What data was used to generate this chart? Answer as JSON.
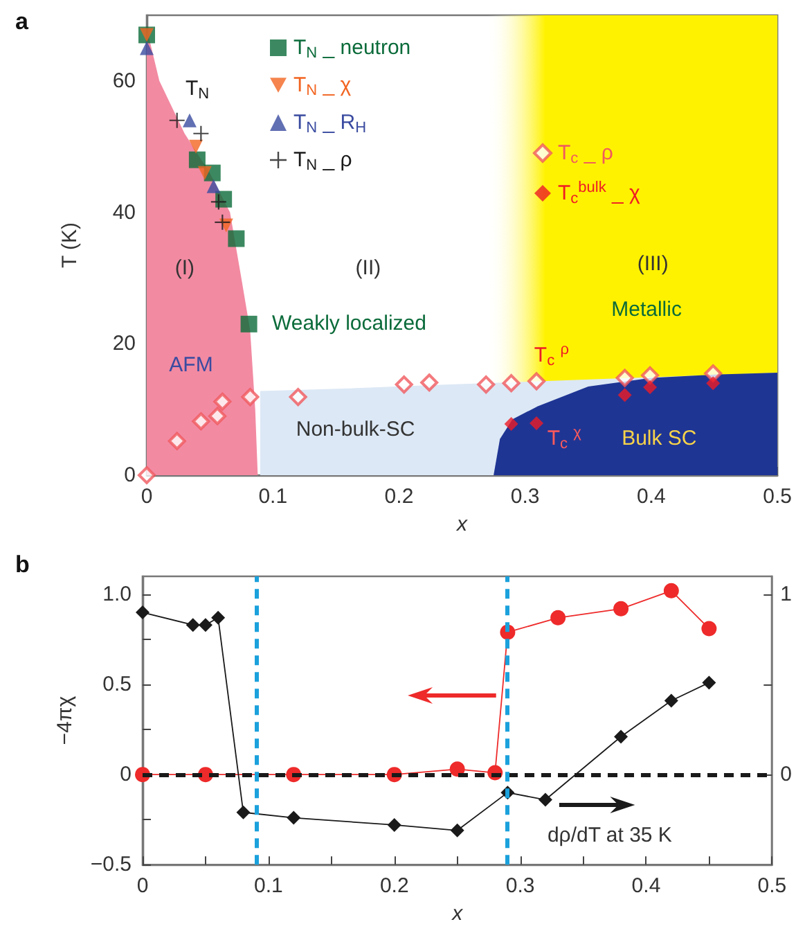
{
  "chart_data": [
    {
      "type": "scatter",
      "title": "a",
      "xlabel": "x",
      "ylabel": "T (K)",
      "xlim": [
        0,
        0.5
      ],
      "xticks": [
        0,
        {
          "value": 0.05,
          "label": null
        },
        0.1,
        {
          "value": 0.15,
          "label": null
        },
        0.2,
        {
          "value": 0.25,
          "label": null
        },
        0.3,
        {
          "value": 0.35,
          "label": null
        },
        0.4,
        {
          "value": 0.45,
          "label": null
        },
        0.5
      ],
      "ylim": [
        0,
        70
      ],
      "yticks": [
        0,
        {
          "value": 10,
          "label": null
        },
        20,
        {
          "value": 30,
          "label": null
        },
        40,
        {
          "value": 50,
          "label": null
        },
        60
      ],
      "grid": false,
      "legend": "top",
      "bands": [
        {
          "axis": "x",
          "from": 0.27,
          "to": 0.5,
          "color": "#fff200"
        }
      ],
      "series": [
        {
          "type": "area",
          "color": "#dce8f5",
          "x": [
            0.09,
            0.16,
            0.24,
            0.5
          ],
          "values": [
            12.8,
            13.2,
            13.8,
            15.6
          ]
        },
        {
          "type": "area",
          "color": "#1f3594",
          "x": [
            0.275,
            0.28,
            0.29,
            0.31,
            0.35,
            0.4,
            0.45,
            0.5
          ],
          "values": [
            0,
            5.5,
            8.5,
            10.5,
            13.5,
            14.8,
            15.3,
            15.6
          ]
        },
        {
          "type": "area",
          "color": "#f28aa2",
          "x": [
            0,
            0.01,
            0.03,
            0.05,
            0.066,
            0.075,
            0.082,
            0.086,
            0.088
          ],
          "values": [
            68,
            60,
            52,
            46,
            40,
            30,
            22,
            10,
            0
          ]
        },
        {
          "name": "T$_{N}$ _ neutron",
          "color": "#0b6b3a",
          "marker": "square",
          "x": [
            0,
            0.04,
            0.052,
            0.061,
            0.071,
            0.081
          ],
          "values": [
            67,
            48,
            46,
            42,
            36,
            23
          ]
        },
        {
          "name": "T$_{N}$ _ χ",
          "color": "#f26522",
          "marker": "triangle-down",
          "x": [
            0,
            0.039,
            0.046,
            0.063
          ],
          "values": [
            67,
            50,
            46,
            38
          ]
        },
        {
          "name": "T$_{N}$ _ R$_{H}$",
          "color": "#3a4ba0",
          "marker": "triangle",
          "x": [
            0,
            0.034,
            0.053
          ],
          "values": [
            65,
            54,
            44
          ]
        },
        {
          "name": "T$_{N}$ _ ρ",
          "color": "#1a1a1a",
          "marker": "cross",
          "x": [
            0.024,
            0.043,
            0.057,
            0.06
          ],
          "values": [
            54,
            52,
            41.6,
            38.5
          ]
        },
        {
          "name": "T$_{c}$ _ ρ",
          "color": "#f0595e",
          "marker": "diamond-open",
          "x": [
            0,
            0.024,
            0.043,
            0.056,
            0.06,
            0.082,
            0.12,
            0.204,
            0.224,
            0.269,
            0.289,
            0.309,
            0.379,
            0.399,
            0.449
          ],
          "values": [
            0,
            5.2,
            8.2,
            9,
            11.2,
            11.9,
            11.9,
            13.8,
            14.1,
            13.8,
            14,
            14.3,
            14.8,
            15.2,
            15.5
          ]
        },
        {
          "name": "T$_{c}$$^{bulk}$ _ χ",
          "color": "#ee1c25",
          "marker": "diamond",
          "x": [
            0.289,
            0.309,
            0.379,
            0.399,
            0.449
          ],
          "values": [
            7.8,
            7.9,
            12.2,
            13.4,
            14
          ]
        }
      ],
      "annotations": [
        "T$_{N}$",
        "(I)",
        "(II)",
        "(III)",
        "AFM",
        "Weakly localized",
        "Non-bulk-SC",
        "Metallic",
        "Bulk SC",
        "T$_{c}$ $^{ρ}$",
        "T$_{c}$ $^{χ}$"
      ]
    },
    {
      "type": "line",
      "title": "b",
      "xlabel": "x",
      "ylabel": "−4πχ",
      "y2label": "dρ/dT at 35 K",
      "xlim": [
        0,
        0.5
      ],
      "xticks": [
        0,
        {
          "value": 0.05,
          "label": null
        },
        0.1,
        {
          "value": 0.15,
          "label": null
        },
        0.2,
        {
          "value": 0.25,
          "label": null
        },
        0.3,
        {
          "value": 0.35,
          "label": null
        },
        0.4,
        {
          "value": 0.45,
          "label": null
        },
        0.5
      ],
      "ylim": [
        -0.5,
        1.1
      ],
      "yticks": [
        {
          "value": -0.5,
          "label": "−0.5"
        },
        {
          "value": -0.25,
          "label": null
        },
        0,
        {
          "value": 0.25,
          "label": null
        },
        0.5,
        {
          "value": 0.75,
          "label": null
        },
        {
          "value": 1,
          "label": "1.0"
        }
      ],
      "y2lim": [
        -0.5,
        1.1
      ],
      "y2ticks": [
        0,
        {
          "value": 0.5,
          "label": null
        },
        1
      ],
      "grid": false,
      "ref_lines": [
        {
          "axis": "y",
          "value": 0,
          "color": "#1a1a1a",
          "line_style": "dashed"
        },
        {
          "axis": "x",
          "value": 0.09,
          "color": "#1ba1dc",
          "line_style": "dashed"
        },
        {
          "axis": "x",
          "value": 0.29,
          "color": "#1ba1dc",
          "line_style": "dashed"
        }
      ],
      "series": [
        {
          "color": "#ee2a2a",
          "marker": "circle",
          "x": [
            0,
            0.05,
            0.12,
            0.2,
            0.25,
            0.28,
            0.29,
            0.33,
            0.38,
            0.42,
            0.45
          ],
          "values": [
            0,
            0,
            0,
            0,
            0.03,
            0.01,
            0.79,
            0.87,
            0.92,
            1.02,
            0.81
          ]
        },
        {
          "color": "#1a1a1a",
          "marker": "diamond",
          "axis": "y2",
          "x": [
            0,
            0.04,
            0.05,
            0.06,
            0.08,
            0.12,
            0.2,
            0.25,
            0.29,
            0.32,
            0.38,
            0.42,
            0.45
          ],
          "values": [
            0.9,
            0.83,
            0.83,
            0.87,
            -0.21,
            -0.24,
            -0.28,
            -0.31,
            -0.1,
            -0.14,
            0.21,
            0.41,
            0.51
          ]
        }
      ]
    }
  ]
}
